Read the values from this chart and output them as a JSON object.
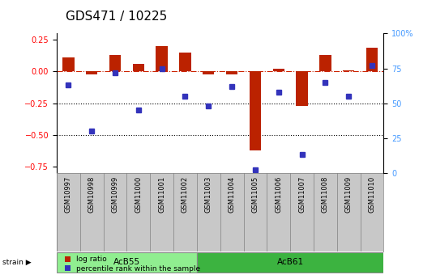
{
  "title": "GDS471 / 10225",
  "samples": [
    "GSM10997",
    "GSM10998",
    "GSM10999",
    "GSM11000",
    "GSM11001",
    "GSM11002",
    "GSM11003",
    "GSM11004",
    "GSM11005",
    "GSM11006",
    "GSM11007",
    "GSM11008",
    "GSM11009",
    "GSM11010"
  ],
  "log_ratio": [
    0.11,
    -0.02,
    0.13,
    0.06,
    0.2,
    0.15,
    -0.02,
    -0.02,
    -0.62,
    0.02,
    -0.27,
    0.13,
    0.01,
    0.19
  ],
  "percentile": [
    63,
    30,
    72,
    45,
    75,
    55,
    48,
    62,
    2,
    58,
    13,
    65,
    55,
    77
  ],
  "groups": [
    {
      "name": "AcB55",
      "start": 0,
      "end": 5,
      "color": "#90EE90"
    },
    {
      "name": "AcB61",
      "start": 6,
      "end": 13,
      "color": "#3CB340"
    }
  ],
  "ylim_left": [
    -0.8,
    0.3
  ],
  "ylim_right": [
    0,
    100
  ],
  "yticks_left": [
    -0.75,
    -0.5,
    -0.25,
    0.0,
    0.25
  ],
  "yticks_right": [
    0,
    25,
    50,
    75,
    100
  ],
  "bar_color": "#BB2200",
  "dot_color": "#3333BB",
  "hline_color": "#CC2200",
  "hline_y": 0.0,
  "dotted_lines": [
    -0.25,
    -0.5
  ],
  "background_color": "#FFFFFF",
  "plot_bg": "#FFFFFF",
  "label_bg": "#C8C8C8",
  "title_fontsize": 11,
  "tick_fontsize": 7,
  "bar_width": 0.5
}
